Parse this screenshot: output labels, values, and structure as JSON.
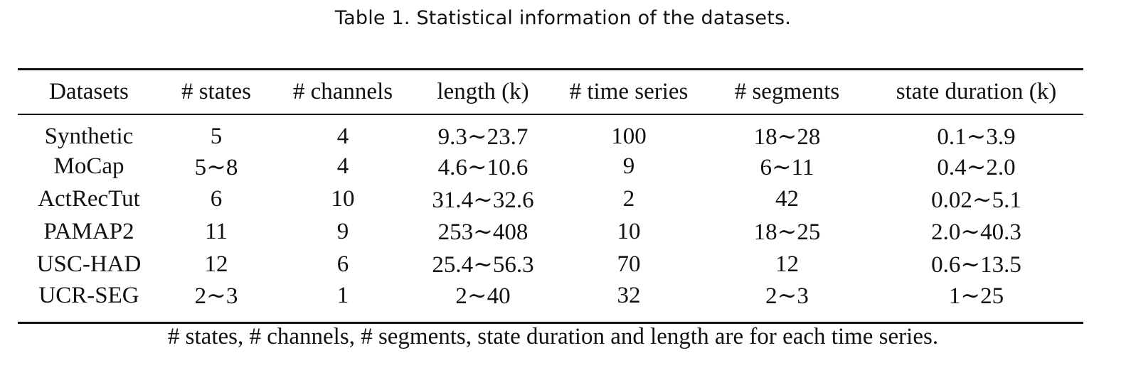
{
  "caption": "Table 1.  Statistical information of the datasets.",
  "table": {
    "headers": [
      "Datasets",
      "# states",
      "# channels",
      "length (k)",
      "# time series",
      "# segments",
      "state duration (k)"
    ],
    "rows": [
      [
        "Synthetic",
        "5",
        "4",
        "9.3∼23.7",
        "100",
        "18∼28",
        "0.1∼3.9"
      ],
      [
        "MoCap",
        "5∼8",
        "4",
        "4.6∼10.6",
        "9",
        "6∼11",
        "0.4∼2.0"
      ],
      [
        "ActRecTut",
        "6",
        "10",
        "31.4∼32.6",
        "2",
        "42",
        "0.02∼5.1"
      ],
      [
        "PAMAP2",
        "11",
        "9",
        "253∼408",
        "10",
        "18∼25",
        "2.0∼40.3"
      ],
      [
        "USC-HAD",
        "12",
        "6",
        "25.4∼56.3",
        "70",
        "12",
        "0.6∼13.5"
      ],
      [
        "UCR-SEG",
        "2∼3",
        "1",
        "2∼40",
        "32",
        "2∼3",
        "1∼25"
      ]
    ]
  },
  "footnote": "# states, # channels, # segments, state duration and length are for each time series."
}
